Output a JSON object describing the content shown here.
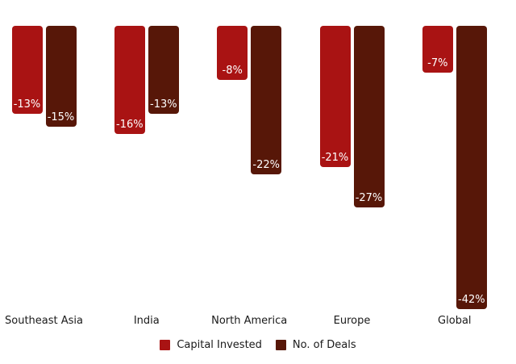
{
  "chart_data": {
    "type": "bar",
    "title": "",
    "categories": [
      "Southeast Asia",
      "India",
      "North America",
      "Europe",
      "Global"
    ],
    "series": [
      {
        "name": "Capital Invested",
        "color": "#A91313",
        "values": [
          -13,
          -16,
          -8,
          -21,
          -7
        ],
        "labels": [
          "-13%",
          "-16%",
          "-8%",
          "-21%",
          "-7%"
        ]
      },
      {
        "name": "No. of Deals",
        "color": "#571708",
        "values": [
          -15,
          -13,
          -22,
          -27,
          -42
        ],
        "labels": [
          "-15%",
          "-13%",
          "-22%",
          "-27%",
          "-42%"
        ]
      }
    ],
    "xlabel": "",
    "ylabel": "",
    "ylim": [
      -45,
      0
    ],
    "baseline": 0,
    "grid": false,
    "axis_lines": false,
    "value_labels_position": "inside-end",
    "value_label_color": "#FFFFFF",
    "text_color": "#1A1A1A",
    "background_color": "#FFFFFF",
    "legend_position": "bottom-center"
  }
}
